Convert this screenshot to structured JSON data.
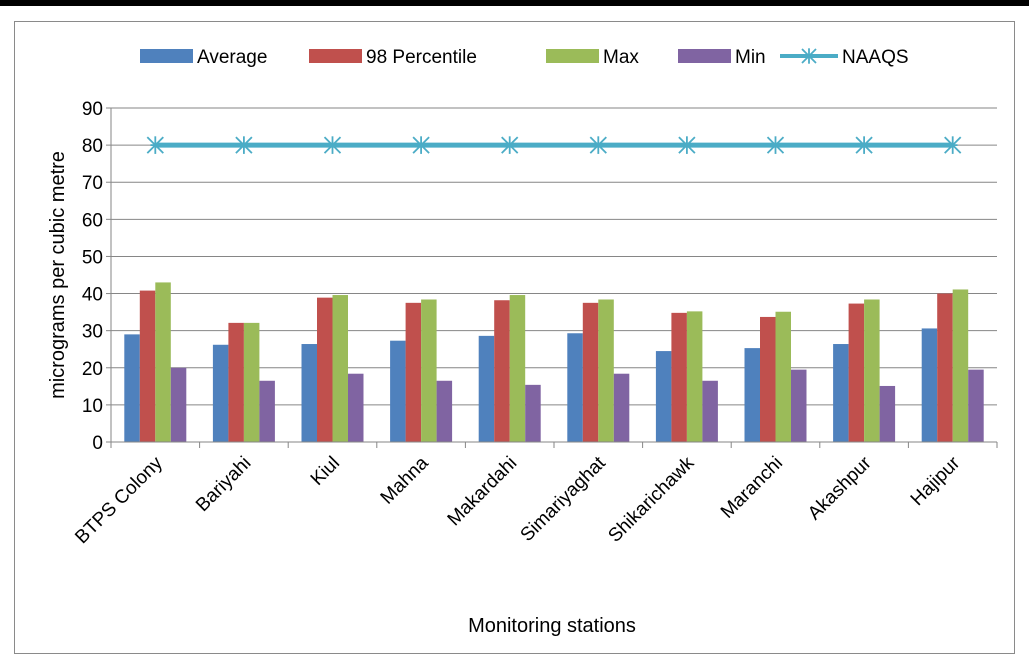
{
  "chart_data": {
    "type": "bar",
    "categories": [
      "BTPS Colony",
      "Bariyahi",
      "Kiul",
      "Mahna",
      "Makardahi",
      "Simariyaghat",
      "Shikarichawk",
      "Maranchi",
      "Akashpur",
      "Hajipur"
    ],
    "series": [
      {
        "name": "Average",
        "color": "#4f81bd",
        "values": [
          29.0,
          26.2,
          26.4,
          27.3,
          28.6,
          29.3,
          24.5,
          25.3,
          26.4,
          30.6
        ]
      },
      {
        "name": "98 Percentile",
        "color": "#c0504d",
        "values": [
          40.8,
          32.1,
          38.9,
          37.5,
          38.2,
          37.5,
          34.8,
          33.7,
          37.3,
          40.0
        ]
      },
      {
        "name": "Max",
        "color": "#9bbb59",
        "values": [
          43.0,
          32.1,
          39.6,
          38.4,
          39.6,
          38.4,
          35.2,
          35.1,
          38.4,
          41.1
        ]
      },
      {
        "name": "Min",
        "color": "#8064a2",
        "values": [
          20.0,
          16.5,
          18.4,
          16.5,
          15.4,
          18.4,
          16.5,
          19.5,
          15.1,
          19.5
        ]
      }
    ],
    "line_series": {
      "name": "NAAQS",
      "color": "#4bacc6",
      "values": [
        80,
        80,
        80,
        80,
        80,
        80,
        80,
        80,
        80,
        80
      ]
    },
    "xlabel": "Monitoring stations",
    "ylabel": "micrograms per cubic metre",
    "ylim": [
      0,
      90
    ],
    "yticks": [
      "0",
      "10",
      "20",
      "30",
      "40",
      "50",
      "60",
      "70",
      "80",
      "90"
    ],
    "grid": true,
    "legend_position": "top"
  }
}
